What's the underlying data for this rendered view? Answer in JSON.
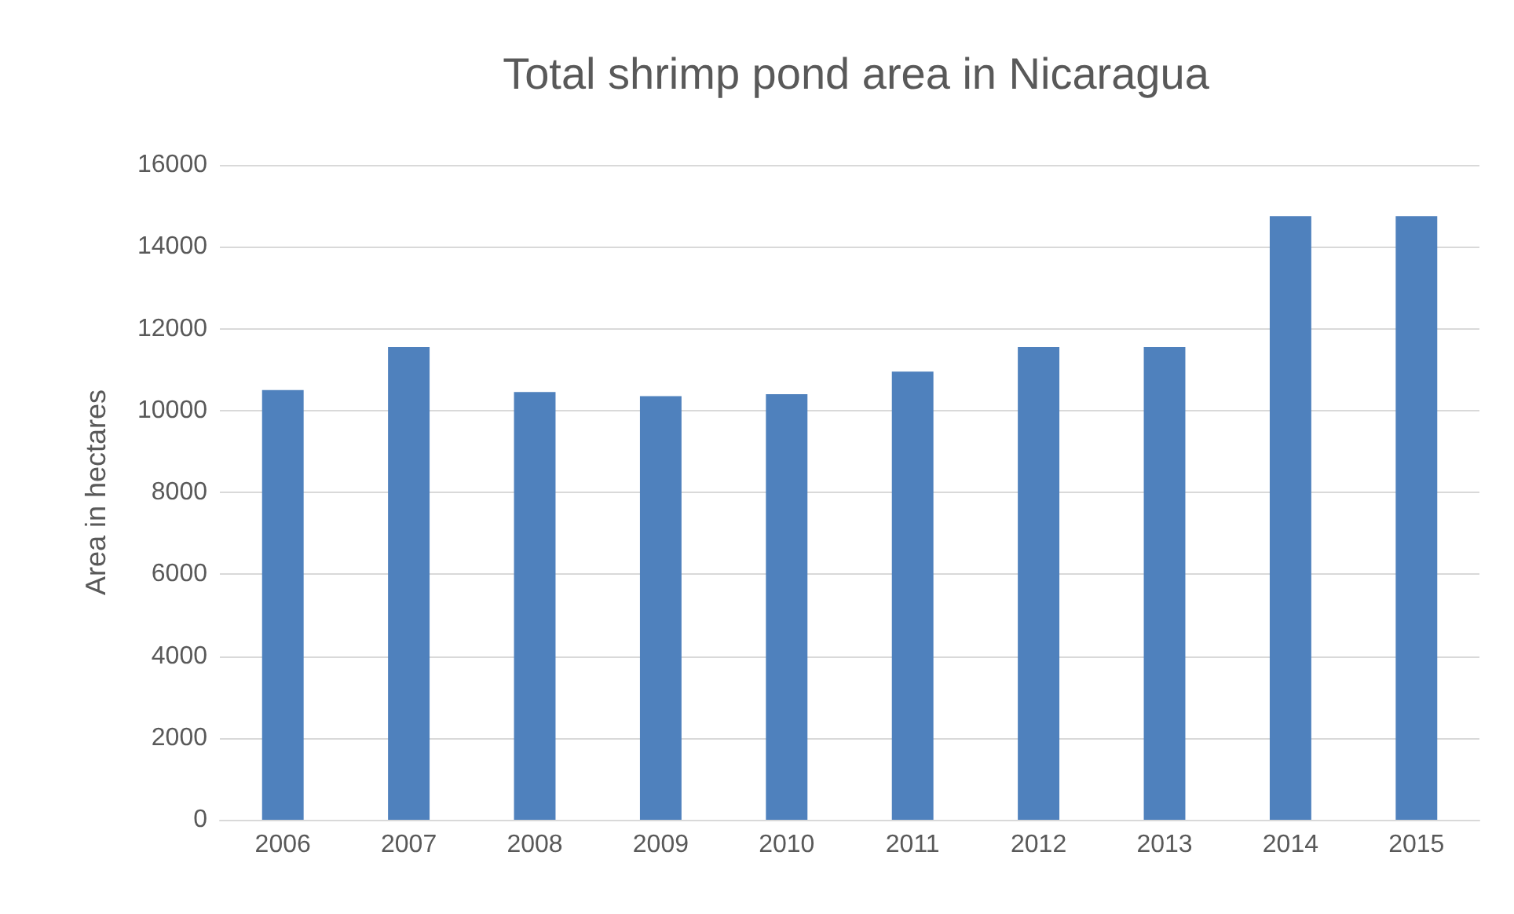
{
  "chart_data": {
    "type": "bar",
    "title": "Total shrimp pond area in Nicaragua",
    "ylabel": "Area in hectares",
    "categories": [
      "2006",
      "2007",
      "2008",
      "2009",
      "2010",
      "2011",
      "2012",
      "2013",
      "2014",
      "2015"
    ],
    "values": [
      10500,
      11550,
      10450,
      10350,
      10400,
      10950,
      11550,
      11550,
      14750,
      14750
    ],
    "color": "#4f81bd",
    "ylim": [
      0,
      16000
    ],
    "yticks": [
      0,
      2000,
      4000,
      6000,
      8000,
      10000,
      12000,
      14000,
      16000
    ],
    "grid": "y"
  }
}
